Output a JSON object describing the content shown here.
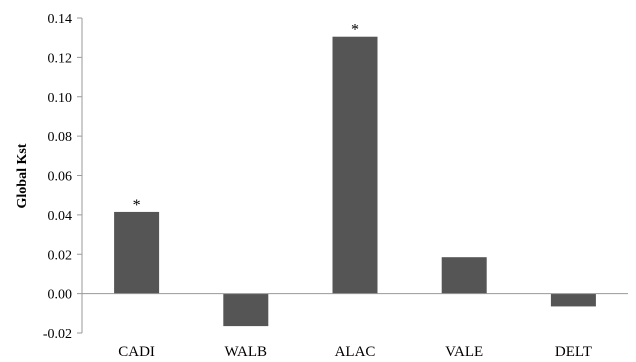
{
  "chart_data": {
    "type": "bar",
    "title": "",
    "xlabel": "",
    "ylabel": "Global Kst",
    "categories": [
      "CADI",
      "WALB",
      "ALAC",
      "VALE",
      "DELT"
    ],
    "values": [
      0.0415,
      -0.0165,
      0.1305,
      0.0185,
      -0.0065
    ],
    "annotations": [
      "*",
      "",
      "*",
      "",
      ""
    ],
    "ylim": [
      -0.02,
      0.14
    ],
    "yticks": [
      -0.02,
      0.0,
      0.02,
      0.04,
      0.06,
      0.08,
      0.1,
      0.12,
      0.14
    ],
    "ytick_labels": [
      "-0.02",
      "0.00",
      "0.02",
      "0.04",
      "0.06",
      "0.08",
      "0.10",
      "0.12",
      "0.14"
    ],
    "grid": false,
    "legend": "none",
    "colors": {
      "bar": "#555555",
      "axis": "#999999"
    }
  }
}
